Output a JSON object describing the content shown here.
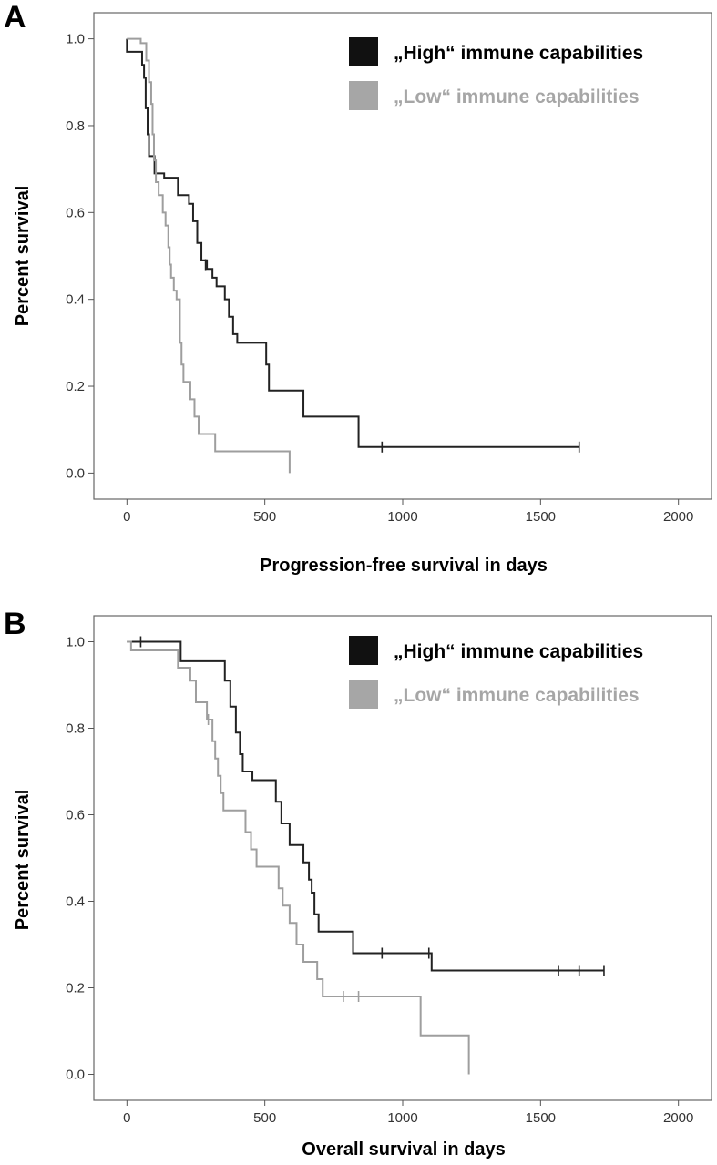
{
  "chart_data": [
    {
      "type": "line",
      "panel_label": "A",
      "xlabel": "Progression-free survival in days",
      "ylabel": "Percent survival",
      "xlim": [
        -120,
        2120
      ],
      "ylim": [
        -0.06,
        1.06
      ],
      "x_ticks": [
        "0",
        "500",
        "1000",
        "1500",
        "2000"
      ],
      "y_ticks": [
        "0.0",
        "0.2",
        "0.4",
        "0.6",
        "0.8",
        "1.0"
      ],
      "grid": false,
      "legend": "top-right",
      "series": [
        {
          "name": "„High“ immune capabilities",
          "color": "#222222",
          "step": [
            [
              0,
              1.0
            ],
            [
              0,
              0.97
            ],
            [
              55,
              0.97
            ],
            [
              55,
              0.94
            ],
            [
              62,
              0.94
            ],
            [
              62,
              0.91
            ],
            [
              68,
              0.91
            ],
            [
              68,
              0.84
            ],
            [
              75,
              0.84
            ],
            [
              75,
              0.78
            ],
            [
              80,
              0.78
            ],
            [
              80,
              0.73
            ],
            [
              100,
              0.73
            ],
            [
              100,
              0.69
            ],
            [
              135,
              0.69
            ],
            [
              135,
              0.68
            ],
            [
              185,
              0.68
            ],
            [
              185,
              0.64
            ],
            [
              225,
              0.64
            ],
            [
              225,
              0.62
            ],
            [
              240,
              0.62
            ],
            [
              240,
              0.58
            ],
            [
              255,
              0.58
            ],
            [
              255,
              0.53
            ],
            [
              270,
              0.53
            ],
            [
              270,
              0.49
            ],
            [
              290,
              0.49
            ],
            [
              290,
              0.47
            ],
            [
              310,
              0.47
            ],
            [
              310,
              0.45
            ],
            [
              325,
              0.45
            ],
            [
              325,
              0.43
            ],
            [
              355,
              0.43
            ],
            [
              355,
              0.4
            ],
            [
              370,
              0.4
            ],
            [
              370,
              0.36
            ],
            [
              385,
              0.36
            ],
            [
              385,
              0.32
            ],
            [
              400,
              0.32
            ],
            [
              400,
              0.3
            ],
            [
              505,
              0.3
            ],
            [
              505,
              0.25
            ],
            [
              515,
              0.25
            ],
            [
              515,
              0.19
            ],
            [
              640,
              0.19
            ],
            [
              640,
              0.13
            ],
            [
              840,
              0.13
            ],
            [
              840,
              0.06
            ],
            [
              1640,
              0.06
            ]
          ],
          "censored": [
            [
              285,
              0.48
            ],
            [
              925,
              0.06
            ],
            [
              1640,
              0.06
            ]
          ]
        },
        {
          "name": "„Low“ immune capabilities",
          "color": "#9e9e9e",
          "step": [
            [
              0,
              1.0
            ],
            [
              50,
              1.0
            ],
            [
              50,
              0.99
            ],
            [
              70,
              0.99
            ],
            [
              70,
              0.95
            ],
            [
              80,
              0.95
            ],
            [
              80,
              0.9
            ],
            [
              88,
              0.9
            ],
            [
              88,
              0.85
            ],
            [
              93,
              0.85
            ],
            [
              93,
              0.78
            ],
            [
              98,
              0.78
            ],
            [
              98,
              0.72
            ],
            [
              105,
              0.72
            ],
            [
              105,
              0.67
            ],
            [
              115,
              0.67
            ],
            [
              115,
              0.64
            ],
            [
              130,
              0.64
            ],
            [
              130,
              0.6
            ],
            [
              140,
              0.6
            ],
            [
              140,
              0.57
            ],
            [
              150,
              0.57
            ],
            [
              150,
              0.52
            ],
            [
              155,
              0.52
            ],
            [
              155,
              0.48
            ],
            [
              160,
              0.48
            ],
            [
              160,
              0.45
            ],
            [
              170,
              0.45
            ],
            [
              170,
              0.42
            ],
            [
              180,
              0.42
            ],
            [
              180,
              0.4
            ],
            [
              192,
              0.4
            ],
            [
              192,
              0.3
            ],
            [
              198,
              0.3
            ],
            [
              198,
              0.25
            ],
            [
              205,
              0.25
            ],
            [
              205,
              0.21
            ],
            [
              230,
              0.21
            ],
            [
              230,
              0.17
            ],
            [
              245,
              0.17
            ],
            [
              245,
              0.13
            ],
            [
              260,
              0.13
            ],
            [
              260,
              0.09
            ],
            [
              320,
              0.09
            ],
            [
              320,
              0.05
            ],
            [
              590,
              0.05
            ],
            [
              590,
              0.0
            ]
          ],
          "censored": []
        }
      ]
    },
    {
      "type": "line",
      "panel_label": "B",
      "xlabel": "Overall survival in days",
      "ylabel": "Percent survival",
      "xlim": [
        -120,
        2120
      ],
      "ylim": [
        -0.06,
        1.06
      ],
      "x_ticks": [
        "0",
        "500",
        "1000",
        "1500",
        "2000"
      ],
      "y_ticks": [
        "0.0",
        "0.2",
        "0.4",
        "0.6",
        "0.8",
        "1.0"
      ],
      "grid": false,
      "legend": "top-right",
      "series": [
        {
          "name": "„High“ immune capabilities",
          "color": "#222222",
          "step": [
            [
              0,
              1.0
            ],
            [
              195,
              1.0
            ],
            [
              195,
              0.955
            ],
            [
              355,
              0.955
            ],
            [
              355,
              0.91
            ],
            [
              375,
              0.91
            ],
            [
              375,
              0.85
            ],
            [
              395,
              0.85
            ],
            [
              395,
              0.79
            ],
            [
              410,
              0.79
            ],
            [
              410,
              0.74
            ],
            [
              420,
              0.74
            ],
            [
              420,
              0.7
            ],
            [
              455,
              0.7
            ],
            [
              455,
              0.68
            ],
            [
              540,
              0.68
            ],
            [
              540,
              0.63
            ],
            [
              560,
              0.63
            ],
            [
              560,
              0.58
            ],
            [
              590,
              0.58
            ],
            [
              590,
              0.53
            ],
            [
              640,
              0.53
            ],
            [
              640,
              0.49
            ],
            [
              660,
              0.49
            ],
            [
              660,
              0.45
            ],
            [
              670,
              0.45
            ],
            [
              670,
              0.42
            ],
            [
              680,
              0.42
            ],
            [
              680,
              0.37
            ],
            [
              695,
              0.37
            ],
            [
              695,
              0.33
            ],
            [
              820,
              0.33
            ],
            [
              820,
              0.28
            ],
            [
              1105,
              0.28
            ],
            [
              1105,
              0.24
            ],
            [
              1730,
              0.24
            ]
          ],
          "censored": [
            [
              50,
              1.0
            ],
            [
              925,
              0.28
            ],
            [
              1095,
              0.28
            ],
            [
              1565,
              0.24
            ],
            [
              1640,
              0.24
            ],
            [
              1730,
              0.24
            ]
          ]
        },
        {
          "name": "„Low“ immune capabilities",
          "color": "#9e9e9e",
          "step": [
            [
              0,
              1.0
            ],
            [
              15,
              1.0
            ],
            [
              15,
              0.98
            ],
            [
              185,
              0.98
            ],
            [
              185,
              0.94
            ],
            [
              230,
              0.94
            ],
            [
              230,
              0.91
            ],
            [
              250,
              0.91
            ],
            [
              250,
              0.86
            ],
            [
              290,
              0.86
            ],
            [
              290,
              0.82
            ],
            [
              310,
              0.82
            ],
            [
              310,
              0.77
            ],
            [
              320,
              0.77
            ],
            [
              320,
              0.73
            ],
            [
              330,
              0.73
            ],
            [
              330,
              0.69
            ],
            [
              340,
              0.69
            ],
            [
              340,
              0.65
            ],
            [
              350,
              0.65
            ],
            [
              350,
              0.61
            ],
            [
              430,
              0.61
            ],
            [
              430,
              0.56
            ],
            [
              450,
              0.56
            ],
            [
              450,
              0.52
            ],
            [
              470,
              0.52
            ],
            [
              470,
              0.48
            ],
            [
              550,
              0.48
            ],
            [
              550,
              0.43
            ],
            [
              565,
              0.43
            ],
            [
              565,
              0.39
            ],
            [
              590,
              0.39
            ],
            [
              590,
              0.35
            ],
            [
              615,
              0.35
            ],
            [
              615,
              0.3
            ],
            [
              640,
              0.3
            ],
            [
              640,
              0.26
            ],
            [
              690,
              0.26
            ],
            [
              690,
              0.22
            ],
            [
              710,
              0.22
            ],
            [
              710,
              0.18
            ],
            [
              1065,
              0.18
            ],
            [
              1065,
              0.09
            ],
            [
              1240,
              0.09
            ],
            [
              1240,
              0.0
            ]
          ],
          "censored": [
            [
              295,
              0.82
            ],
            [
              785,
              0.18
            ],
            [
              840,
              0.18
            ]
          ]
        }
      ]
    }
  ]
}
